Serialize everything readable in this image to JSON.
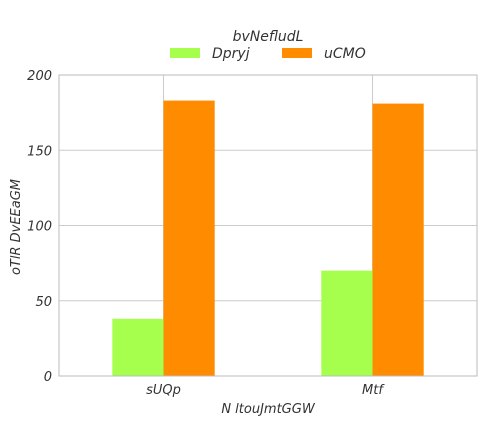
{
  "chart_data": {
    "type": "bar",
    "categories": [
      "sUQp",
      "Mtf"
    ],
    "series": [
      {
        "name": "Dpryj",
        "values": [
          38,
          70
        ],
        "color": "#a6ff4d"
      },
      {
        "name": "uCMO",
        "values": [
          183,
          181
        ],
        "color": "#ff8c00"
      }
    ],
    "xlabel": "N ltouJmtGGW",
    "ylabel": "oTlR DvEEaGM",
    "ylim": [
      0,
      200
    ],
    "yticks": [
      0,
      50,
      100,
      150,
      200
    ],
    "legend": {
      "title": "bvNefludL",
      "placement": "top-center"
    },
    "grid": true,
    "colors": {
      "grid": "#cccccc",
      "axis": "#bbbbbb",
      "text": "#333333"
    }
  }
}
